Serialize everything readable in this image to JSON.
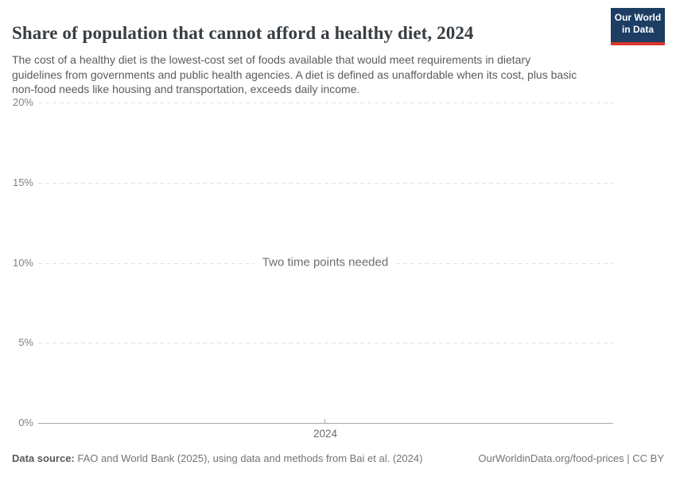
{
  "header": {
    "title": "Share of population that cannot afford a healthy diet, 2024",
    "subtitle": "The cost of a healthy diet is the lowest-cost set of foods available that would meet requirements in dietary guidelines from governments and public health agencies. A diet is defined as unaffordable when its cost, plus basic non-food needs like housing and transportation, exceeds daily income.",
    "logo": {
      "line1": "Our World",
      "line2": "in Data",
      "background": "#1d3d63",
      "accent": "#d8362c"
    }
  },
  "chart_data": {
    "type": "line",
    "title": "Share of population that cannot afford a healthy diet, 2024",
    "series": [],
    "empty": true,
    "message": "Two time points needed",
    "ylim": [
      0,
      20
    ],
    "ylabel": "",
    "xlabel": "",
    "y_ticks": [
      {
        "label": "0%",
        "value": 0
      },
      {
        "label": "5%",
        "value": 5
      },
      {
        "label": "10%",
        "value": 10
      },
      {
        "label": "15%",
        "value": 15
      },
      {
        "label": "20%",
        "value": 20
      }
    ],
    "x_ticks": [
      {
        "label": "2024",
        "value": 2024
      }
    ],
    "grid": "horizontal-dashed",
    "legend": "none",
    "colors": {
      "gridline": "#e2e2e2",
      "axis_line": "#a8a8a8",
      "tick_label": "#828282",
      "message_text": "#6e6e6e"
    }
  },
  "footer": {
    "data_source_label": "Data source:",
    "data_source_value": " FAO and World Bank (2025), using data and methods from Bai et al. (2024)",
    "link": "OurWorldinData.org/food-prices",
    "separator": " | ",
    "license": "CC BY"
  }
}
